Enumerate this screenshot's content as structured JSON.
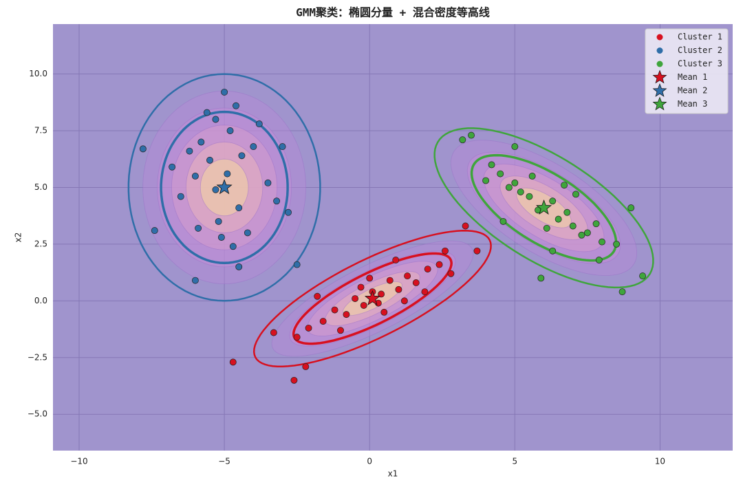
{
  "chart_data": {
    "type": "scatter",
    "title": "GMM聚类：椭圆分量 + 混合密度等高线",
    "x_label": "x1",
    "y_label": "x2",
    "xlim": [
      -10.9,
      12.5
    ],
    "ylim": [
      -6.6,
      12.2
    ],
    "xticks": [
      {
        "value": -10,
        "label": "−10"
      },
      {
        "value": -5,
        "label": "−5"
      },
      0,
      5,
      10
    ],
    "yticks": [
      {
        "value": -5,
        "label": "−5.0"
      },
      {
        "value": -2.5,
        "label": "−2.5"
      },
      {
        "value": 0,
        "label": "0.0"
      },
      {
        "value": 2.5,
        "label": "2.5"
      },
      {
        "value": 5,
        "label": "5.0"
      },
      {
        "value": 7.5,
        "label": "7.5"
      },
      {
        "value": 10,
        "label": "10.0"
      }
    ],
    "grid": true,
    "legend": "upper right",
    "series": [
      {
        "name": "Cluster 1",
        "color": "#d7101f",
        "x": [
          -2.1,
          -1.6,
          -1.2,
          -0.8,
          -0.5,
          -0.2,
          0.1,
          0.4,
          0.7,
          1.0,
          1.3,
          1.6,
          2.0,
          2.4,
          2.8,
          -1.0,
          -0.3,
          0.5,
          1.2,
          1.9,
          -2.5,
          -1.8,
          0.0,
          0.9,
          2.6,
          -3.3,
          -4.7,
          -2.6,
          -2.2,
          3.3,
          3.7,
          0.3
        ],
        "y": [
          -1.2,
          -0.9,
          -0.4,
          -0.6,
          0.1,
          -0.2,
          0.4,
          0.3,
          0.9,
          0.5,
          1.1,
          0.8,
          1.4,
          1.6,
          1.2,
          -1.3,
          0.6,
          -0.5,
          0.0,
          0.4,
          -1.6,
          0.2,
          1.0,
          1.8,
          2.2,
          -1.4,
          -2.7,
          -3.5,
          -2.9,
          3.3,
          2.2,
          -0.1
        ]
      },
      {
        "name": "Cluster 2",
        "color": "#2f6ea8",
        "x": [
          -5.0,
          -5.5,
          -4.5,
          -6.0,
          -4.0,
          -5.2,
          -4.8,
          -6.5,
          -3.5,
          -5.8,
          -4.2,
          -5.3,
          -4.7,
          -6.8,
          -3.2,
          -5.0,
          -4.4,
          -5.9,
          -3.8,
          -6.2,
          -5.1,
          -4.6,
          -7.8,
          -4.5,
          -3.0,
          -6.0,
          -2.5,
          -5.3,
          -4.9,
          -7.4,
          -2.8,
          -5.6
        ],
        "y": [
          5.0,
          6.2,
          4.1,
          5.5,
          6.8,
          3.5,
          7.5,
          4.6,
          5.2,
          7.0,
          3.0,
          8.0,
          2.4,
          5.9,
          4.4,
          9.2,
          6.4,
          3.2,
          7.8,
          6.6,
          2.8,
          8.6,
          6.7,
          1.5,
          6.8,
          0.9,
          1.6,
          4.9,
          5.6,
          3.1,
          3.9,
          8.3
        ]
      },
      {
        "name": "Cluster 3",
        "color": "#3fa53c",
        "x": [
          6.0,
          5.5,
          6.5,
          5.0,
          7.0,
          4.5,
          7.5,
          5.8,
          6.3,
          4.2,
          8.0,
          5.2,
          6.8,
          7.3,
          4.8,
          6.1,
          5.6,
          7.8,
          4.0,
          8.5,
          3.2,
          3.5,
          9.4,
          8.7,
          5.0,
          7.9,
          5.9,
          6.7,
          4.6,
          7.1,
          9.0,
          6.3
        ],
        "y": [
          4.1,
          4.6,
          3.6,
          5.2,
          3.3,
          5.6,
          3.0,
          4.0,
          4.4,
          6.0,
          2.6,
          4.8,
          3.9,
          2.9,
          5.0,
          3.2,
          5.5,
          3.4,
          5.3,
          2.5,
          7.1,
          7.3,
          1.1,
          0.4,
          6.8,
          1.8,
          1.0,
          5.1,
          3.5,
          4.7,
          4.1,
          2.2
        ]
      }
    ],
    "means": [
      {
        "name": "Mean 1",
        "color": "#d7101f",
        "x": 0.1,
        "y": 0.1,
        "ellipses": [
          {
            "a": 3.2,
            "b": 1.05,
            "angle": 34
          },
          {
            "a": 4.8,
            "b": 1.6,
            "angle": 34
          }
        ]
      },
      {
        "name": "Mean 2",
        "color": "#2f6ea8",
        "x": -5.0,
        "y": 5.0,
        "ellipses": [
          {
            "a": 3.33,
            "b": 2.18,
            "angle": 90
          },
          {
            "a": 5.0,
            "b": 3.3,
            "angle": 90
          }
        ]
      },
      {
        "name": "Mean 3",
        "color": "#3fa53c",
        "x": 6.0,
        "y": 4.1,
        "ellipses": [
          {
            "a": 3.1,
            "b": 1.4,
            "angle": -42
          },
          {
            "a": 4.7,
            "b": 2.1,
            "angle": -42
          }
        ]
      }
    ]
  }
}
